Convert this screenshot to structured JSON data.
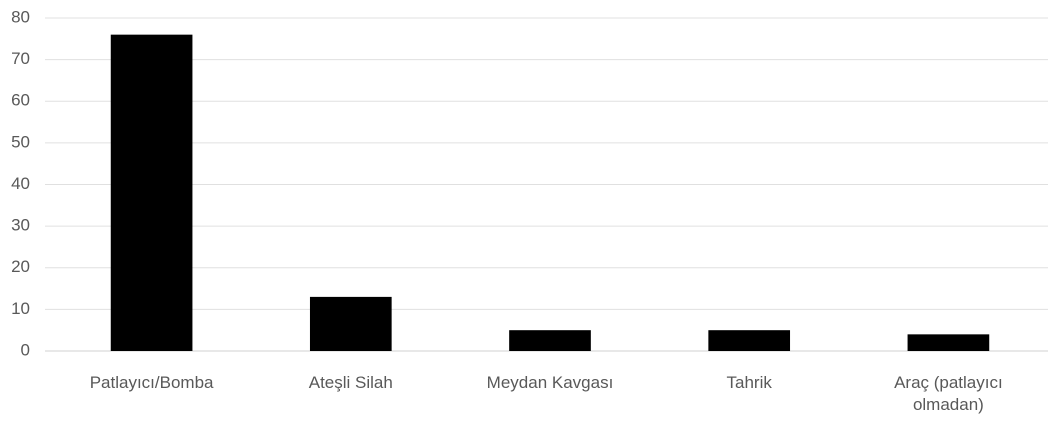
{
  "chart_data": {
    "type": "bar",
    "categories": [
      "Patlayıcı/Bomba",
      "Ateşli Silah",
      "Meydan Kavgası",
      "Tahrik",
      "Araç (patlayıcı olmadan)"
    ],
    "values": [
      76,
      13,
      5,
      5,
      4
    ],
    "color": "#000000",
    "ylim": [
      0,
      80
    ],
    "yticks": [
      0,
      10,
      20,
      30,
      40,
      50,
      60,
      70,
      80
    ],
    "grid": true
  }
}
